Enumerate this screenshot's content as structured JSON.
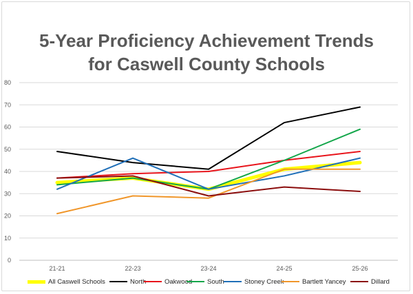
{
  "chart_data": {
    "type": "line",
    "title_line1": "5-Year Proficiency Achievement Trends",
    "title_line2": "for Caswell County Schools",
    "categories": [
      "21-21",
      "22-23",
      "23-24",
      "24-25",
      "25-26"
    ],
    "ylim": [
      0,
      80
    ],
    "yticks": [
      0,
      10,
      20,
      30,
      40,
      50,
      60,
      70,
      80
    ],
    "grid": true,
    "legend_position": "bottom",
    "series": [
      {
        "name": "All Caswell Schools",
        "color": "#ffff00",
        "width": 5,
        "values": [
          35,
          37,
          32,
          41,
          44
        ]
      },
      {
        "name": "North",
        "color": "#000000",
        "width": 2,
        "values": [
          49,
          44,
          41,
          62,
          69
        ]
      },
      {
        "name": "Oakwood",
        "color": "#e8141b",
        "width": 2,
        "values": [
          37,
          39,
          40,
          45,
          49
        ]
      },
      {
        "name": "South",
        "color": "#13a64a",
        "width": 2,
        "values": [
          34,
          37,
          32,
          45,
          59
        ]
      },
      {
        "name": "Stoney Creek",
        "color": "#1f6fb8",
        "width": 2,
        "values": [
          32,
          46,
          32,
          38,
          46
        ]
      },
      {
        "name": "Bartlett Yancey",
        "color": "#f0962a",
        "width": 2,
        "values": [
          21,
          29,
          28,
          41,
          41
        ]
      },
      {
        "name": "Dillard",
        "color": "#8b0d0d",
        "width": 2,
        "values": [
          37,
          38,
          29,
          33,
          31
        ]
      }
    ]
  }
}
